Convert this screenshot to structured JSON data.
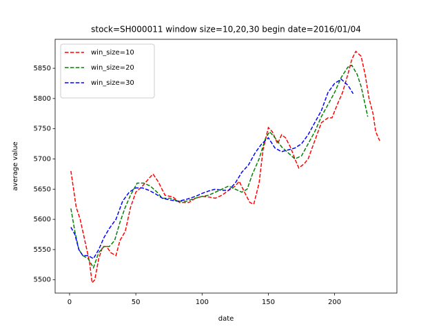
{
  "chart_data": {
    "type": "line",
    "title": "stock=SH000011 window size=10,20,30 begin date=2016/01/04",
    "x_label": "date",
    "y_label": "average value",
    "xlim": [
      -10.9,
      247
    ],
    "ylim": [
      5478,
      5898
    ],
    "xticks": [
      0,
      50,
      100,
      150,
      200
    ],
    "yticks": [
      5500,
      5550,
      5600,
      5650,
      5700,
      5750,
      5800,
      5850
    ],
    "legend": "upper left",
    "series": [
      {
        "name": "win_size=10",
        "color": "#ff0000",
        "x": [
          1,
          5,
          8,
          12,
          15,
          17,
          19,
          22,
          25,
          28,
          31,
          35,
          38,
          42,
          46,
          50,
          55,
          60,
          63,
          67,
          72,
          78,
          83,
          90,
          95,
          100,
          105,
          110,
          115,
          120,
          125,
          128,
          132,
          136,
          139,
          143,
          146,
          150,
          153,
          157,
          160,
          163,
          167,
          170,
          173,
          177,
          180,
          185,
          190,
          195,
          198,
          202,
          206,
          210,
          213,
          216,
          220,
          223,
          226,
          229,
          231,
          234
        ],
        "values": [
          5680,
          5620,
          5600,
          5560,
          5530,
          5495,
          5500,
          5535,
          5555,
          5555,
          5545,
          5540,
          5565,
          5580,
          5620,
          5645,
          5655,
          5668,
          5675,
          5662,
          5640,
          5637,
          5628,
          5628,
          5635,
          5638,
          5637,
          5635,
          5640,
          5648,
          5655,
          5663,
          5645,
          5628,
          5625,
          5660,
          5715,
          5752,
          5745,
          5725,
          5740,
          5735,
          5718,
          5700,
          5685,
          5692,
          5700,
          5730,
          5760,
          5768,
          5768,
          5790,
          5810,
          5840,
          5865,
          5878,
          5870,
          5840,
          5800,
          5775,
          5745,
          5730
        ]
      },
      {
        "name": "win_size=20",
        "color": "#008000",
        "x": [
          1,
          4,
          7,
          10,
          14,
          18,
          22,
          26,
          30,
          34,
          38,
          42,
          46,
          51,
          56,
          61,
          66,
          70,
          76,
          82,
          88,
          95,
          100,
          105,
          110,
          115,
          120,
          125,
          130,
          134,
          138,
          143,
          148,
          151,
          155,
          160,
          165,
          170,
          175,
          180,
          185,
          190,
          195,
          200,
          205,
          210,
          213,
          217,
          220,
          223,
          225
        ],
        "values": [
          5618,
          5580,
          5550,
          5540,
          5535,
          5520,
          5545,
          5555,
          5555,
          5565,
          5595,
          5620,
          5640,
          5660,
          5660,
          5655,
          5645,
          5635,
          5635,
          5630,
          5630,
          5635,
          5638,
          5640,
          5645,
          5650,
          5655,
          5650,
          5645,
          5650,
          5675,
          5700,
          5735,
          5745,
          5735,
          5720,
          5710,
          5700,
          5705,
          5725,
          5745,
          5770,
          5790,
          5810,
          5835,
          5852,
          5855,
          5840,
          5820,
          5790,
          5770
        ]
      },
      {
        "name": "win_size=30",
        "color": "#0000ff",
        "x": [
          1,
          4,
          7,
          10,
          14,
          18,
          22,
          26,
          30,
          35,
          40,
          45,
          50,
          55,
          60,
          65,
          70,
          76,
          82,
          88,
          95,
          100,
          105,
          110,
          115,
          120,
          125,
          130,
          135,
          140,
          145,
          150,
          155,
          160,
          165,
          170,
          175,
          180,
          185,
          190,
          195,
          200,
          205,
          210,
          214
        ],
        "values": [
          5587,
          5575,
          5550,
          5540,
          5540,
          5535,
          5550,
          5570,
          5585,
          5600,
          5630,
          5645,
          5652,
          5652,
          5648,
          5642,
          5635,
          5632,
          5630,
          5633,
          5638,
          5643,
          5647,
          5650,
          5648,
          5648,
          5660,
          5678,
          5690,
          5710,
          5725,
          5735,
          5718,
          5712,
          5715,
          5718,
          5725,
          5740,
          5760,
          5780,
          5810,
          5825,
          5832,
          5822,
          5808
        ]
      }
    ]
  }
}
